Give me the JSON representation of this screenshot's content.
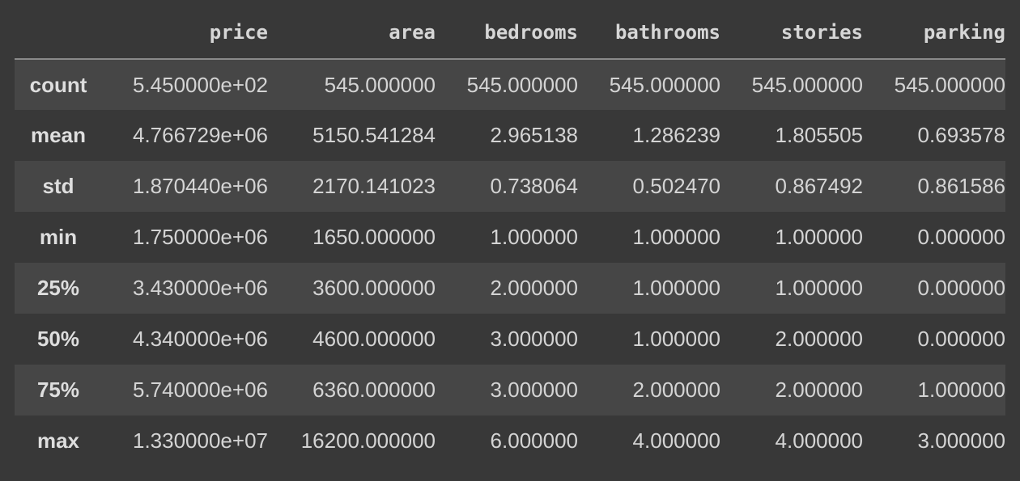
{
  "table": {
    "columns": [
      "price",
      "area",
      "bedrooms",
      "bathrooms",
      "stories",
      "parking"
    ],
    "rows": [
      {
        "index": "count",
        "values": [
          "5.450000e+02",
          "545.000000",
          "545.000000",
          "545.000000",
          "545.000000",
          "545.000000"
        ]
      },
      {
        "index": "mean",
        "values": [
          "4.766729e+06",
          "5150.541284",
          "2.965138",
          "1.286239",
          "1.805505",
          "0.693578"
        ]
      },
      {
        "index": "std",
        "values": [
          "1.870440e+06",
          "2170.141023",
          "0.738064",
          "0.502470",
          "0.867492",
          "0.861586"
        ]
      },
      {
        "index": "min",
        "values": [
          "1.750000e+06",
          "1650.000000",
          "1.000000",
          "1.000000",
          "1.000000",
          "0.000000"
        ]
      },
      {
        "index": "25%",
        "values": [
          "3.430000e+06",
          "3600.000000",
          "2.000000",
          "1.000000",
          "1.000000",
          "0.000000"
        ]
      },
      {
        "index": "50%",
        "values": [
          "4.340000e+06",
          "4600.000000",
          "3.000000",
          "1.000000",
          "2.000000",
          "0.000000"
        ]
      },
      {
        "index": "75%",
        "values": [
          "5.740000e+06",
          "6360.000000",
          "3.000000",
          "2.000000",
          "2.000000",
          "1.000000"
        ]
      },
      {
        "index": "max",
        "values": [
          "1.330000e+07",
          "16200.000000",
          "6.000000",
          "4.000000",
          "4.000000",
          "3.000000"
        ]
      }
    ]
  },
  "colors": {
    "background": "#383838",
    "stripe": "#464646",
    "text": "#d4d4d4",
    "header_rule": "#8a8a8a"
  }
}
